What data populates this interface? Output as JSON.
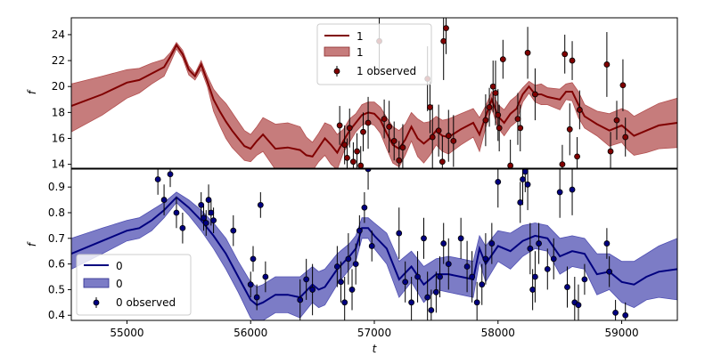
{
  "chart_data": [
    {
      "type": "line",
      "panel": "top",
      "xlabel": "",
      "ylabel": "f",
      "xlim": [
        54550,
        59450
      ],
      "ylim": [
        13.7,
        25.3
      ],
      "yticks": [
        14,
        16,
        18,
        20,
        22,
        24
      ],
      "grid": false,
      "legend_position": "top-center",
      "legend": [
        "1",
        "1",
        "1 observed"
      ],
      "colors": {
        "line": "#800000",
        "band": "#b35050",
        "marker": "#800000"
      },
      "mean": {
        "x": [
          54550,
          54800,
          55000,
          55100,
          55200,
          55300,
          55350,
          55400,
          55450,
          55500,
          55550,
          55600,
          55650,
          55700,
          55750,
          55800,
          55850,
          55900,
          55950,
          56000,
          56050,
          56100,
          56200,
          56300,
          56400,
          56450,
          56500,
          56550,
          56600,
          56650,
          56700,
          56750,
          56800,
          56850,
          56900,
          56950,
          57000,
          57050,
          57100,
          57150,
          57200,
          57250,
          57300,
          57350,
          57400,
          57450,
          57500,
          57550,
          57600,
          57700,
          57800,
          57850,
          57900,
          57950,
          58000,
          58050,
          58100,
          58150,
          58200,
          58250,
          58300,
          58350,
          58400,
          58500,
          58550,
          58600,
          58650,
          58700,
          58800,
          58900,
          59000,
          59050,
          59100,
          59200,
          59300,
          59450
        ],
        "y": [
          18.5,
          19.4,
          20.3,
          20.5,
          21.0,
          21.5,
          22.3,
          23.2,
          22.5,
          21.3,
          20.8,
          21.7,
          20.4,
          19.0,
          18.1,
          17.3,
          16.6,
          16.0,
          15.4,
          15.2,
          15.8,
          16.3,
          15.2,
          15.3,
          15.1,
          14.7,
          14.6,
          15.3,
          16.0,
          15.5,
          14.9,
          15.8,
          16.6,
          17.2,
          17.8,
          18.0,
          17.9,
          17.4,
          16.4,
          15.5,
          15.2,
          15.9,
          16.9,
          16.0,
          15.6,
          16.0,
          16.6,
          16.2,
          16.1,
          16.7,
          17.2,
          16.3,
          17.7,
          19.0,
          17.7,
          17.2,
          17.9,
          18.3,
          19.4,
          20.0,
          19.4,
          19.4,
          19.2,
          19.0,
          19.6,
          19.6,
          18.6,
          17.7,
          17.1,
          16.6,
          17.0,
          16.6,
          16.2,
          16.6,
          17.0,
          17.2
        ],
        "upper": [
          20.2,
          20.8,
          21.3,
          21.4,
          21.8,
          22.1,
          22.6,
          23.4,
          22.8,
          21.6,
          21.0,
          22.0,
          20.8,
          19.8,
          19.2,
          18.7,
          18.0,
          17.3,
          16.6,
          16.3,
          16.9,
          17.6,
          17.1,
          17.2,
          16.9,
          16.1,
          15.7,
          16.4,
          17.2,
          17.0,
          16.3,
          16.7,
          17.5,
          17.9,
          18.6,
          18.8,
          18.8,
          18.4,
          17.6,
          16.9,
          16.6,
          17.1,
          18.0,
          17.5,
          17.2,
          17.3,
          17.7,
          17.4,
          17.5,
          17.9,
          18.3,
          17.6,
          18.5,
          19.6,
          18.6,
          18.2,
          18.9,
          19.3,
          19.9,
          20.4,
          20.1,
          20.2,
          19.9,
          19.8,
          20.2,
          20.3,
          19.6,
          18.6,
          18.1,
          17.9,
          18.3,
          18.1,
          17.7,
          18.2,
          18.7,
          19.1
        ],
        "lower": [
          16.5,
          17.8,
          19.1,
          19.5,
          20.2,
          20.8,
          21.8,
          22.9,
          22.2,
          20.9,
          20.5,
          21.3,
          20.0,
          18.1,
          17.0,
          16.0,
          15.3,
          14.8,
          14.3,
          14.2,
          14.7,
          15.0,
          13.6,
          13.5,
          13.4,
          13.4,
          13.5,
          14.2,
          14.7,
          14.0,
          13.6,
          14.9,
          15.7,
          16.5,
          17.0,
          17.2,
          17.0,
          16.4,
          15.2,
          14.1,
          13.8,
          14.7,
          15.8,
          14.6,
          14.1,
          14.7,
          15.5,
          15.0,
          14.8,
          15.5,
          16.1,
          15.0,
          16.8,
          18.3,
          16.8,
          16.2,
          16.9,
          17.3,
          18.8,
          19.5,
          18.8,
          18.6,
          18.6,
          18.2,
          19.0,
          18.9,
          17.6,
          16.8,
          16.2,
          15.4,
          15.7,
          15.1,
          14.7,
          14.9,
          15.2,
          15.3
        ]
      },
      "observed": {
        "x": [
          56720,
          56760,
          56780,
          56800,
          56830,
          56860,
          56890,
          56910,
          56950,
          57040,
          57080,
          57120,
          57160,
          57200,
          57230,
          57430,
          57450,
          57470,
          57520,
          57550,
          57560,
          57580,
          57600,
          57640,
          57900,
          57930,
          57960,
          57980,
          58000,
          58010,
          58040,
          58100,
          58160,
          58180,
          58240,
          58300,
          58520,
          58540,
          58580,
          58600,
          58640,
          58660,
          58880,
          58910,
          58960,
          59010,
          59030
        ],
        "y": [
          17.0,
          15.5,
          14.5,
          16.8,
          14.2,
          15.0,
          13.9,
          16.5,
          17.2,
          23.5,
          17.5,
          16.9,
          15.8,
          14.3,
          15.3,
          20.6,
          18.4,
          16.1,
          16.6,
          14.2,
          23.5,
          24.5,
          16.2,
          15.8,
          17.4,
          18.4,
          20.0,
          19.5,
          17.8,
          16.8,
          22.1,
          13.9,
          17.5,
          16.8,
          22.6,
          19.4,
          14.0,
          22.5,
          16.7,
          22.0,
          14.6,
          18.2,
          21.7,
          15.0,
          17.4,
          20.1,
          16.1
        ],
        "err": [
          1.5,
          1.5,
          1.5,
          1.5,
          1.5,
          1.4,
          1.5,
          1.5,
          2.0,
          2.5,
          1.5,
          2.0,
          1.5,
          1.5,
          1.8,
          2.5,
          2.0,
          2.5,
          2.0,
          2.0,
          3.0,
          2.0,
          2.0,
          2.0,
          2.0,
          1.5,
          2.0,
          2.5,
          2.0,
          1.8,
          1.5,
          2.0,
          2.0,
          1.8,
          2.0,
          2.0,
          1.5,
          1.5,
          2.0,
          1.5,
          1.5,
          1.5,
          2.5,
          1.5,
          1.5,
          2.0,
          1.5
        ]
      }
    },
    {
      "type": "line",
      "panel": "bottom",
      "xlabel": "t",
      "ylabel": "f",
      "xlim": [
        54550,
        59450
      ],
      "ylim": [
        0.38,
        0.97
      ],
      "xticks": [
        55000,
        56000,
        57000,
        58000,
        59000
      ],
      "yticks": [
        0.4,
        0.5,
        0.6,
        0.7,
        0.8,
        0.9
      ],
      "grid": false,
      "legend_position": "lower-left",
      "legend": [
        "0",
        "0",
        "0 observed"
      ],
      "colors": {
        "line": "#00007f",
        "band": "#5050b3",
        "marker": "#00007f"
      },
      "mean": {
        "x": [
          54550,
          54800,
          55000,
          55100,
          55200,
          55300,
          55400,
          55500,
          55600,
          55700,
          55800,
          55900,
          56000,
          56050,
          56100,
          56200,
          56300,
          56400,
          56500,
          56550,
          56600,
          56700,
          56800,
          56850,
          56900,
          56950,
          57000,
          57100,
          57200,
          57300,
          57400,
          57500,
          57600,
          57700,
          57800,
          57850,
          57900,
          58000,
          58100,
          58200,
          58300,
          58400,
          58500,
          58600,
          58700,
          58800,
          58900,
          59000,
          59100,
          59200,
          59300,
          59450
        ],
        "y": [
          0.64,
          0.69,
          0.73,
          0.74,
          0.77,
          0.81,
          0.86,
          0.82,
          0.77,
          0.71,
          0.64,
          0.55,
          0.46,
          0.44,
          0.45,
          0.48,
          0.48,
          0.47,
          0.52,
          0.5,
          0.51,
          0.58,
          0.63,
          0.66,
          0.74,
          0.74,
          0.71,
          0.66,
          0.54,
          0.59,
          0.52,
          0.56,
          0.56,
          0.55,
          0.54,
          0.66,
          0.6,
          0.67,
          0.65,
          0.69,
          0.71,
          0.7,
          0.63,
          0.65,
          0.64,
          0.56,
          0.57,
          0.53,
          0.52,
          0.55,
          0.57,
          0.58
        ],
        "upper": [
          0.7,
          0.74,
          0.77,
          0.78,
          0.81,
          0.84,
          0.88,
          0.85,
          0.81,
          0.76,
          0.7,
          0.61,
          0.53,
          0.51,
          0.52,
          0.55,
          0.55,
          0.55,
          0.59,
          0.57,
          0.58,
          0.64,
          0.68,
          0.71,
          0.78,
          0.78,
          0.76,
          0.72,
          0.61,
          0.65,
          0.59,
          0.62,
          0.63,
          0.62,
          0.61,
          0.71,
          0.67,
          0.73,
          0.72,
          0.75,
          0.76,
          0.75,
          0.7,
          0.71,
          0.7,
          0.64,
          0.64,
          0.61,
          0.61,
          0.64,
          0.67,
          0.7
        ],
        "lower": [
          0.58,
          0.64,
          0.69,
          0.7,
          0.73,
          0.78,
          0.84,
          0.79,
          0.73,
          0.66,
          0.58,
          0.49,
          0.39,
          0.37,
          0.38,
          0.41,
          0.41,
          0.39,
          0.45,
          0.43,
          0.44,
          0.52,
          0.58,
          0.61,
          0.7,
          0.7,
          0.66,
          0.6,
          0.47,
          0.53,
          0.45,
          0.5,
          0.49,
          0.48,
          0.47,
          0.61,
          0.53,
          0.61,
          0.58,
          0.63,
          0.66,
          0.65,
          0.56,
          0.59,
          0.58,
          0.48,
          0.5,
          0.45,
          0.43,
          0.46,
          0.47,
          0.46
        ]
      },
      "observed": {
        "x": [
          55250,
          55300,
          55350,
          55400,
          55450,
          55600,
          55620,
          55640,
          55660,
          55680,
          55700,
          55860,
          56000,
          56020,
          56050,
          56080,
          56120,
          56400,
          56450,
          56500,
          56700,
          56730,
          56760,
          56790,
          56820,
          56850,
          56880,
          56920,
          56950,
          56980,
          57200,
          57250,
          57300,
          57350,
          57400,
          57430,
          57460,
          57500,
          57530,
          57560,
          57600,
          57700,
          57750,
          57790,
          57830,
          57870,
          57900,
          57950,
          58000,
          58180,
          58200,
          58220,
          58240,
          58260,
          58280,
          58300,
          58330,
          58400,
          58450,
          58500,
          58560,
          58600,
          58620,
          58650,
          58700,
          58880,
          58900,
          58950,
          59030
        ],
        "y": [
          0.93,
          0.85,
          0.95,
          0.8,
          0.74,
          0.83,
          0.78,
          0.76,
          0.85,
          0.8,
          0.77,
          0.73,
          0.52,
          0.62,
          0.47,
          0.83,
          0.55,
          0.46,
          0.54,
          0.5,
          0.59,
          0.53,
          0.45,
          0.62,
          0.5,
          0.6,
          0.73,
          0.82,
          0.97,
          0.67,
          0.72,
          0.53,
          0.45,
          0.55,
          0.7,
          0.47,
          0.42,
          0.49,
          0.55,
          0.68,
          0.6,
          0.7,
          0.59,
          0.55,
          0.45,
          0.52,
          0.62,
          0.68,
          0.92,
          0.84,
          0.93,
          0.96,
          0.91,
          0.66,
          0.5,
          0.55,
          0.68,
          0.58,
          0.62,
          0.88,
          0.51,
          0.89,
          0.45,
          0.44,
          0.54,
          0.68,
          0.57,
          0.41,
          0.4
        ],
        "err": [
          0.06,
          0.06,
          0.05,
          0.06,
          0.06,
          0.05,
          0.05,
          0.05,
          0.06,
          0.05,
          0.05,
          0.06,
          0.05,
          0.05,
          0.05,
          0.05,
          0.06,
          0.08,
          0.08,
          0.1,
          0.08,
          0.08,
          0.1,
          0.1,
          0.08,
          0.08,
          0.06,
          0.06,
          0.08,
          0.06,
          0.1,
          0.08,
          0.1,
          0.1,
          0.08,
          0.1,
          0.08,
          0.08,
          0.08,
          0.08,
          0.1,
          0.08,
          0.1,
          0.1,
          0.08,
          0.08,
          0.1,
          0.08,
          0.1,
          0.08,
          0.1,
          0.08,
          0.1,
          0.1,
          0.08,
          0.1,
          0.08,
          0.08,
          0.08,
          0.1,
          0.08,
          0.1,
          0.1,
          0.08,
          0.06,
          0.06,
          0.06,
          0.05,
          0.05
        ]
      }
    }
  ]
}
